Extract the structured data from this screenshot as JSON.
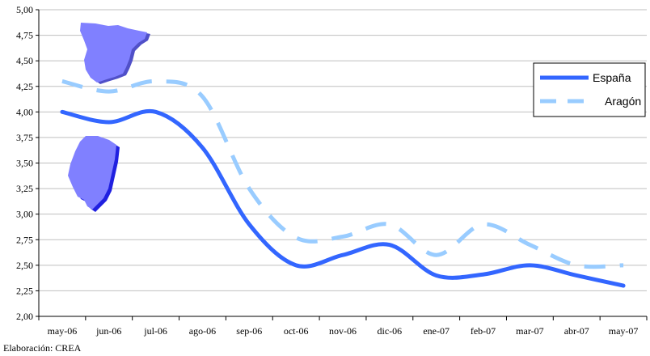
{
  "chart_data": {
    "type": "line",
    "categories": [
      "may-06",
      "jun-06",
      "jul-06",
      "ago-06",
      "sep-06",
      "oct-06",
      "nov-06",
      "dic-06",
      "ene-07",
      "feb-07",
      "mar-07",
      "abr-07",
      "may-07"
    ],
    "series": [
      {
        "name": "España",
        "color": "#3366ff",
        "style": "solid",
        "values": [
          4.0,
          3.9,
          4.0,
          3.65,
          2.9,
          2.5,
          2.6,
          2.7,
          2.4,
          2.41,
          2.5,
          2.4,
          2.3
        ]
      },
      {
        "name": "Aragón",
        "color": "#99ccff",
        "style": "dashed",
        "values": [
          4.3,
          4.2,
          4.3,
          4.15,
          3.25,
          2.77,
          2.78,
          2.9,
          2.6,
          2.9,
          2.7,
          2.5,
          2.5
        ]
      }
    ],
    "yticks": [
      "2,00",
      "2,25",
      "2,50",
      "2,75",
      "3,00",
      "3,25",
      "3,50",
      "3,75",
      "4,00",
      "4,25",
      "4,50",
      "4,75",
      "5,00"
    ],
    "ylim": [
      2.0,
      5.0
    ],
    "grid": true,
    "legend_position": "right",
    "title": "",
    "xlabel": "",
    "ylabel": ""
  },
  "source_note": "Elaboración: CREA",
  "decorations": {
    "map_spain": "spain-map-icon",
    "map_aragon": "aragon-map-icon",
    "map_color": "#8080ff"
  }
}
